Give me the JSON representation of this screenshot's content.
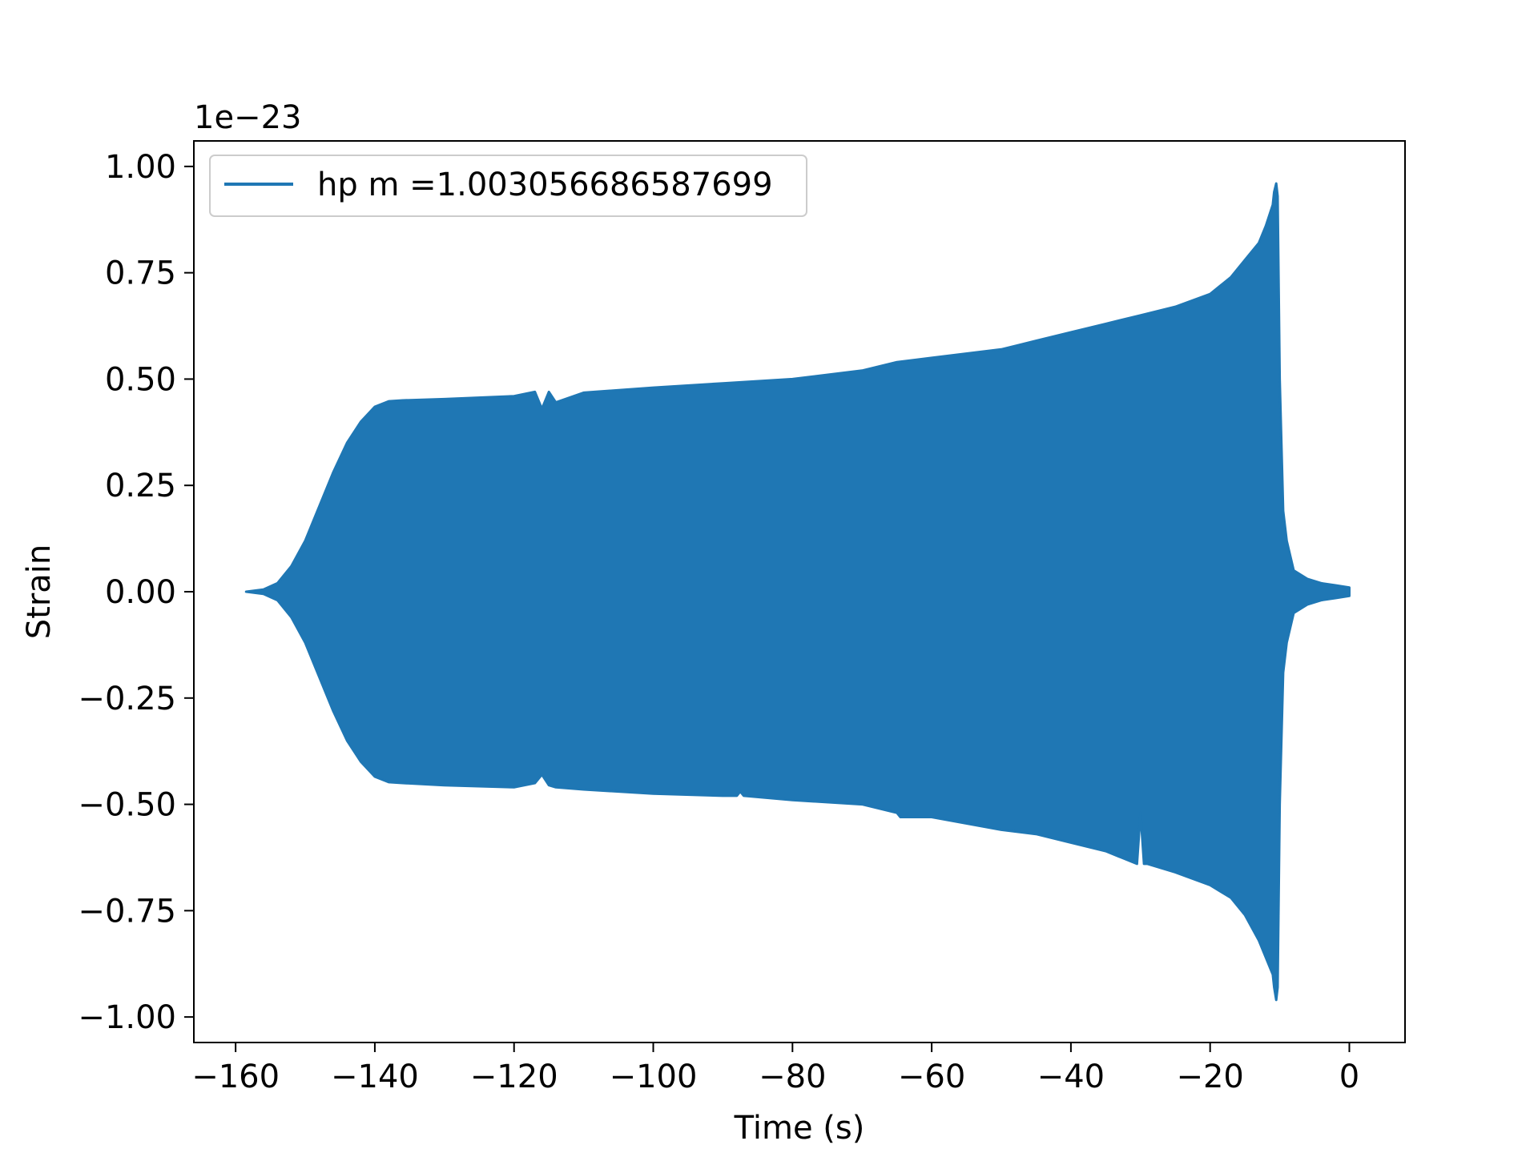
{
  "chart_data": {
    "type": "line",
    "title": "",
    "xlabel": "Time (s)",
    "ylabel": "Strain",
    "y_offset_text": "1e−23",
    "xlim": [
      -166,
      8
    ],
    "ylim": [
      -1.06,
      1.06
    ],
    "x_ticks": [
      -160,
      -140,
      -120,
      -100,
      -80,
      -60,
      -40,
      -20,
      0
    ],
    "x_tick_labels": [
      "−160",
      "−140",
      "−120",
      "−100",
      "−80",
      "−60",
      "−40",
      "−20",
      "0"
    ],
    "y_ticks": [
      1.0,
      0.75,
      0.5,
      0.25,
      0.0,
      -0.25,
      -0.5,
      -0.75,
      -1.0
    ],
    "y_tick_labels": [
      "1.00",
      "0.75",
      "0.50",
      "0.25",
      "0.00",
      "−0.25",
      "−0.50",
      "−0.75",
      "−1.00"
    ],
    "grid": false,
    "legend_position": "top-left",
    "series": [
      {
        "name": "hp m =1.003056686587699",
        "color": "#1f77b4",
        "envelope_upper": {
          "x": [
            -158.5,
            -156,
            -154,
            -152,
            -150,
            -148,
            -146,
            -144,
            -142,
            -140,
            -138,
            -136,
            -130,
            -120,
            -117,
            -116,
            -115,
            -114,
            -110,
            -100,
            -90,
            -80,
            -70,
            -65,
            -60,
            -50,
            -45,
            -40,
            -35,
            -30,
            -25,
            -20,
            -17,
            -15,
            -13,
            -12,
            -11,
            -10.8,
            -10.5,
            -10.3,
            -10,
            -9.5,
            -9,
            -8,
            -6,
            -4,
            -2,
            0
          ],
          "y": [
            0.0,
            0.005,
            0.02,
            0.06,
            0.12,
            0.2,
            0.28,
            0.35,
            0.4,
            0.435,
            0.448,
            0.45,
            0.453,
            0.46,
            0.47,
            0.43,
            0.47,
            0.445,
            0.468,
            0.48,
            0.49,
            0.5,
            0.52,
            0.54,
            0.55,
            0.57,
            0.59,
            0.61,
            0.63,
            0.65,
            0.67,
            0.7,
            0.74,
            0.78,
            0.82,
            0.86,
            0.91,
            0.94,
            0.96,
            0.93,
            0.5,
            0.19,
            0.12,
            0.05,
            0.03,
            0.02,
            0.015,
            0.01
          ]
        },
        "envelope_lower": {
          "x": [
            -158.5,
            -156,
            -154,
            -152,
            -150,
            -148,
            -146,
            -144,
            -142,
            -140,
            -138,
            -136,
            -130,
            -120,
            -117,
            -116,
            -115,
            -114,
            -110,
            -100,
            -90,
            -88,
            -87.5,
            -87,
            -80,
            -70,
            -65,
            -64.5,
            -60,
            -50,
            -45,
            -40,
            -35,
            -30.5,
            -30,
            -29.5,
            -29,
            -25,
            -20,
            -17,
            -15,
            -13,
            -12,
            -11,
            -10.8,
            -10.5,
            -10.3,
            -10,
            -9.5,
            -9,
            -8,
            -6,
            -4,
            -2,
            0
          ],
          "y": [
            0.0,
            -0.005,
            -0.02,
            -0.06,
            -0.12,
            -0.2,
            -0.28,
            -0.35,
            -0.4,
            -0.435,
            -0.448,
            -0.45,
            -0.455,
            -0.46,
            -0.45,
            -0.43,
            -0.455,
            -0.46,
            -0.465,
            -0.475,
            -0.48,
            -0.48,
            -0.47,
            -0.48,
            -0.49,
            -0.5,
            -0.52,
            -0.53,
            -0.53,
            -0.56,
            -0.57,
            -0.59,
            -0.61,
            -0.64,
            -0.52,
            -0.64,
            -0.64,
            -0.66,
            -0.69,
            -0.72,
            -0.76,
            -0.82,
            -0.86,
            -0.9,
            -0.93,
            -0.96,
            -0.93,
            -0.5,
            -0.19,
            -0.12,
            -0.05,
            -0.03,
            -0.02,
            -0.015,
            -0.01
          ]
        }
      }
    ]
  }
}
